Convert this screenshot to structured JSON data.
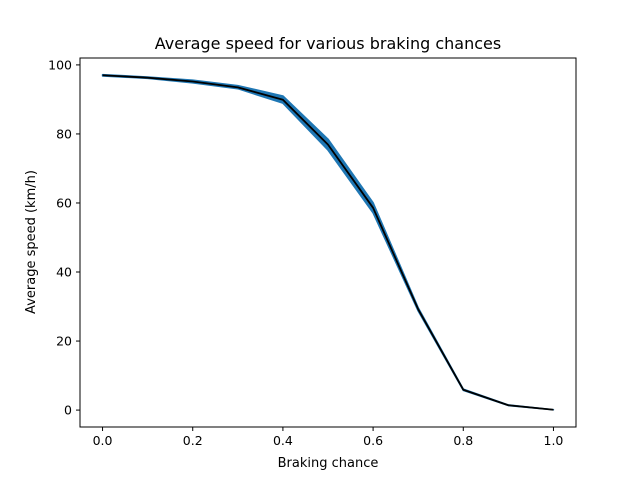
{
  "chart_data": {
    "type": "line",
    "title": "Average speed for various braking chances",
    "xlabel": "Braking chance",
    "ylabel": "Average speed (km/h)",
    "xlim": [
      -0.05,
      1.05
    ],
    "ylim": [
      -4.9,
      102.0
    ],
    "x_ticks": [
      0.0,
      0.2,
      0.4,
      0.6,
      0.8,
      1.0
    ],
    "x_tick_labels": [
      "0.0",
      "0.2",
      "0.4",
      "0.6",
      "0.8",
      "1.0"
    ],
    "y_ticks": [
      0,
      20,
      40,
      60,
      80,
      100
    ],
    "y_tick_labels": [
      "0",
      "20",
      "40",
      "60",
      "80",
      "100"
    ],
    "grid": false,
    "x": [
      0.0,
      0.1,
      0.2,
      0.3,
      0.4,
      0.5,
      0.6,
      0.7,
      0.8,
      0.9,
      1.0
    ],
    "mean": [
      97.0,
      96.3,
      95.2,
      93.5,
      89.9,
      76.9,
      58.6,
      29.2,
      5.9,
      1.4,
      0.1
    ],
    "band_upper": [
      97.2,
      96.5,
      95.6,
      94.0,
      91.0,
      78.5,
      60.1,
      29.7,
      6.1,
      1.5,
      0.1
    ],
    "band_lower": [
      96.8,
      96.1,
      94.8,
      93.1,
      88.9,
      75.3,
      57.1,
      28.7,
      5.7,
      1.3,
      0.1
    ],
    "colors": {
      "band": "#1f77b4",
      "line": "#000000"
    }
  }
}
